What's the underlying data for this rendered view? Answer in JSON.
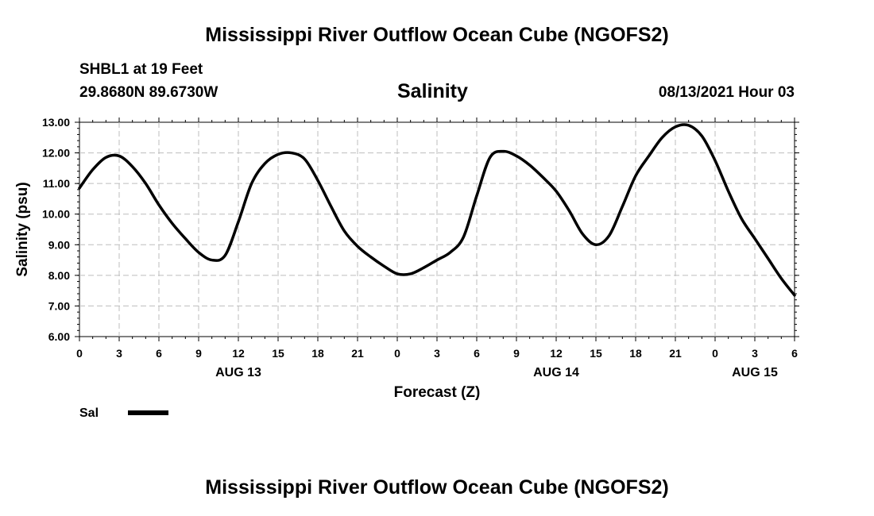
{
  "page": {
    "title_top": "Mississippi River Outflow Ocean Cube (NGOFS2)",
    "title_bottom": "Mississippi River Outflow Ocean Cube (NGOFS2)",
    "station": "SHBL1 at 19 Feet",
    "location": "29.8680N  89.6730W",
    "subtitle": "Salinity",
    "datetime": "08/13/2021 Hour 03"
  },
  "chart_data": {
    "type": "line",
    "title": "Salinity",
    "xlabel": "Forecast (Z)",
    "ylabel": "Salinity (psu)",
    "xlim": [
      0,
      54
    ],
    "ylim": [
      6.0,
      13.0
    ],
    "grid": true,
    "y_ticks": [
      "6.00",
      "7.00",
      "8.00",
      "9.00",
      "10.00",
      "11.00",
      "12.00",
      "13.00"
    ],
    "x_tick_hours": [
      0,
      3,
      6,
      9,
      12,
      15,
      18,
      21,
      24,
      27,
      30,
      33,
      36,
      39,
      42,
      45,
      48,
      51,
      54
    ],
    "x_tick_labels": [
      "0",
      "3",
      "6",
      "9",
      "12",
      "15",
      "18",
      "21",
      "0",
      "3",
      "6",
      "9",
      "12",
      "15",
      "18",
      "21",
      "0",
      "3",
      "6"
    ],
    "date_labels": [
      {
        "hour": 12,
        "label": "AUG 13"
      },
      {
        "hour": 36,
        "label": "AUG 14"
      },
      {
        "hour": 51,
        "label": "AUG 15"
      }
    ],
    "legend": [
      {
        "name": "Sal",
        "color": "#000000"
      }
    ],
    "series": [
      {
        "name": "Sal",
        "x": [
          0,
          1,
          2,
          3,
          4,
          5,
          6,
          7,
          8,
          9,
          10,
          11,
          12,
          13,
          14,
          15,
          16,
          17,
          18,
          19,
          20,
          21,
          22,
          23,
          24,
          25,
          26,
          27,
          28,
          29,
          30,
          31,
          32,
          33,
          34,
          35,
          36,
          37,
          38,
          39,
          40,
          41,
          42,
          43,
          44,
          45,
          46,
          47,
          48,
          49,
          50,
          51,
          52,
          53,
          54
        ],
        "y": [
          10.85,
          11.45,
          11.85,
          11.9,
          11.55,
          11.0,
          10.3,
          9.7,
          9.2,
          8.75,
          8.5,
          8.65,
          9.75,
          11.0,
          11.65,
          11.95,
          12.0,
          11.8,
          11.1,
          10.25,
          9.45,
          8.95,
          8.6,
          8.3,
          8.05,
          8.05,
          8.25,
          8.5,
          8.75,
          9.25,
          10.6,
          11.85,
          12.05,
          11.9,
          11.6,
          11.2,
          10.75,
          10.1,
          9.35,
          9.0,
          9.3,
          10.25,
          11.25,
          11.9,
          12.5,
          12.85,
          12.9,
          12.55,
          11.75,
          10.75,
          9.85,
          9.2,
          8.55,
          7.9,
          7.35
        ]
      }
    ]
  }
}
